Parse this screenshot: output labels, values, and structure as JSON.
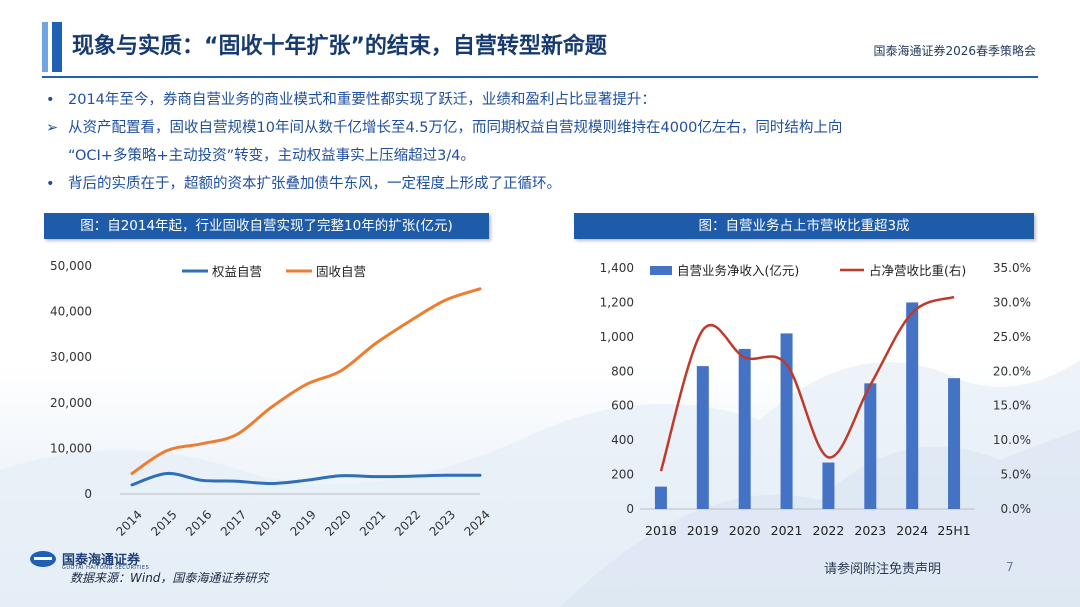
{
  "header": {
    "title": "现象与实质：“固收十年扩张”的结束，自营转型新命题",
    "brand": "国泰海通证券2026春季策略会"
  },
  "bullets": [
    {
      "marker": "•",
      "text": "2014年至今，券商自营业务的商业模式和重要性都实现了跃迁，业绩和盈利占比显著提升："
    },
    {
      "marker": "➢",
      "text": "从资产配置看，固收自营规模10年间从数千亿增长至4.5万亿，而同期权益自营规模则维持在4000亿左右，同时结构上向"
    },
    {
      "marker": "",
      "text": "“OCI+多策略+主动投资”转变，主动权益事实上压缩超过3/4。"
    },
    {
      "marker": "•",
      "text": "背后的实质在于，超额的资本扩张叠加债牛东风，一定程度上形成了正循环。"
    }
  ],
  "panels": {
    "left_title": "图：自2014年起，行业固收自营实现了完整10年的扩张(亿元)",
    "right_title": "图：自营业务占上市营收比重超3成"
  },
  "colors": {
    "equity_line": "#2e6fb8",
    "fixed_line": "#ed7d31",
    "bar": "#4472c4",
    "ratio_line": "#c0392b",
    "panel_bg": "#1e5ba8"
  },
  "chart_data": [
    {
      "type": "line",
      "title": "自2014年起，行业固收自营实现了完整10年的扩张(亿元)",
      "x": [
        "2014",
        "2015",
        "2016",
        "2017",
        "2018",
        "2019",
        "2020",
        "2021",
        "2022",
        "2023",
        "2024"
      ],
      "series": [
        {
          "name": "权益自营",
          "values": [
            2000,
            4500,
            3000,
            2800,
            2300,
            3000,
            4000,
            3800,
            3900,
            4100,
            4100
          ]
        },
        {
          "name": "固收自营",
          "values": [
            4500,
            9500,
            11000,
            13000,
            19000,
            24000,
            27000,
            33000,
            38000,
            42500,
            45000
          ]
        }
      ],
      "ylim": [
        0,
        50000
      ],
      "yticks": [
        "0",
        "10,000",
        "20,000",
        "30,000",
        "40,000",
        "50,000"
      ],
      "legend_position": "top-center"
    },
    {
      "type": "bar",
      "title": "自营业务占上市营收比重超3成",
      "categories": [
        "2018",
        "2019",
        "2020",
        "2021",
        "2022",
        "2023",
        "2024",
        "25H1"
      ],
      "series": [
        {
          "name": "自营业务净收入(亿元)",
          "type": "bar",
          "axis": "left",
          "values": [
            130,
            830,
            930,
            1020,
            270,
            730,
            1200,
            760
          ]
        },
        {
          "name": "占净营收比重(右)",
          "type": "line",
          "axis": "right",
          "values": [
            5.5,
            26.0,
            22.0,
            21.0,
            7.5,
            18.0,
            28.5,
            30.8
          ]
        }
      ],
      "ylim": [
        0,
        1400
      ],
      "y2lim": [
        0,
        35
      ],
      "yticks": [
        "0",
        "200",
        "400",
        "600",
        "800",
        "1,000",
        "1,200",
        "1,400"
      ],
      "y2ticks": [
        "0.0%",
        "5.0%",
        "10.0%",
        "15.0%",
        "20.0%",
        "25.0%",
        "30.0%",
        "35.0%"
      ],
      "legend_position": "top"
    }
  ],
  "footer": {
    "source": "数据来源：Wind，国泰海通证券研究",
    "logo_cn": "国泰海通证券",
    "logo_en": "GUOTAI HAITONG SECURITIES",
    "disclaimer": "请参阅附注免责声明",
    "page": "7"
  }
}
